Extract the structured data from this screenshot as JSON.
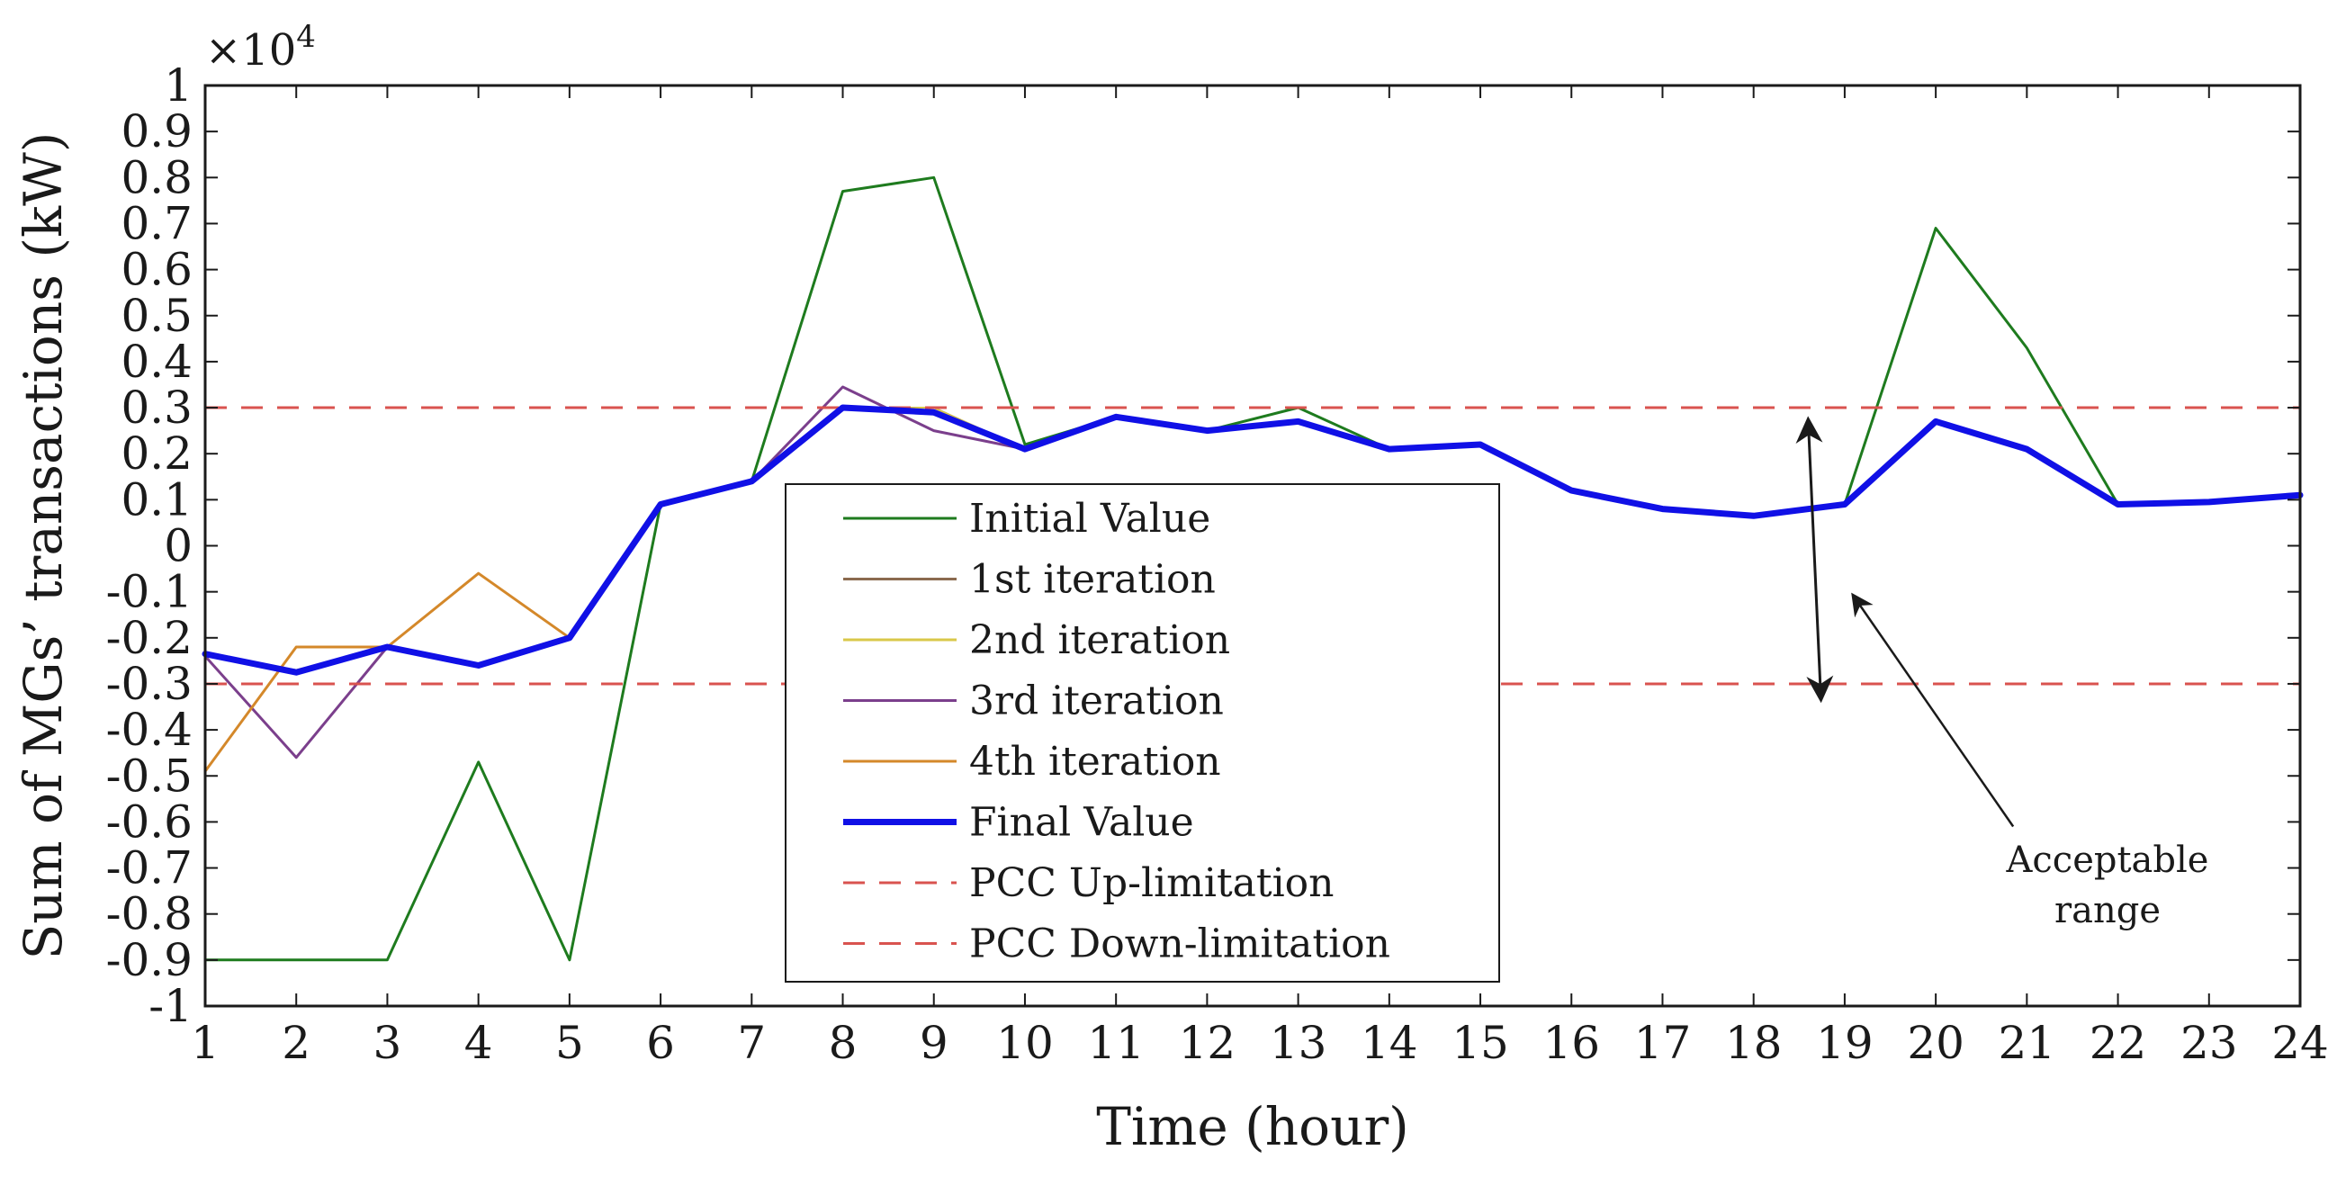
{
  "chart_data": {
    "type": "line",
    "title": "",
    "xlabel": "Time (hour)",
    "ylabel": "Sum of MGs’ transactions (kW)",
    "y_multiplier": "×10",
    "y_multiplier_exp": "4",
    "xlim": [
      1,
      24
    ],
    "ylim": [
      -1,
      1
    ],
    "x": [
      1,
      2,
      3,
      4,
      5,
      6,
      7,
      8,
      9,
      10,
      11,
      12,
      13,
      14,
      15,
      16,
      17,
      18,
      19,
      20,
      21,
      22,
      23,
      24
    ],
    "x_tick_labels": [
      "1",
      "2",
      "3",
      "4",
      "5",
      "6",
      "7",
      "8",
      "9",
      "10",
      "11",
      "12",
      "13",
      "14",
      "15",
      "16",
      "17",
      "18",
      "19",
      "20",
      "21",
      "22",
      "23",
      "24"
    ],
    "y_ticks": [
      1,
      0.9,
      0.8,
      0.7,
      0.6,
      0.5,
      0.4,
      0.3,
      0.2,
      0.1,
      0,
      -0.1,
      -0.2,
      -0.3,
      -0.4,
      -0.5,
      -0.6,
      -0.7,
      -0.8,
      -0.9,
      -1
    ],
    "y_tick_labels": [
      "1",
      "0.9",
      "0.8",
      "0.7",
      "0.6",
      "0.5",
      "0.4",
      "0.3",
      "0.2",
      "0.1",
      "0",
      "-0.1",
      "-0.2",
      "-0.3",
      "-0.4",
      "-0.5",
      "-0.6",
      "-0.7",
      "-0.8",
      "-0.9",
      "-1"
    ],
    "series": [
      {
        "name": "Initial Value",
        "color": "#1e7b1e",
        "width": 3,
        "dash": "none",
        "values": [
          -0.9,
          -0.9,
          -0.9,
          -0.47,
          -0.9,
          0.09,
          0.14,
          0.77,
          0.8,
          0.22,
          0.28,
          0.25,
          0.3,
          0.21,
          0.22,
          0.12,
          0.08,
          0.065,
          0.09,
          0.69,
          0.43,
          0.09,
          0.095,
          0.11
        ]
      },
      {
        "name": "1st iteration",
        "color": "#8b6a4f",
        "width": 2,
        "dash": "none",
        "values": [
          -0.24,
          -0.27,
          -0.22,
          -0.26,
          -0.2,
          0.09,
          0.14,
          0.3,
          0.3,
          0.21,
          0.28,
          0.25,
          0.27,
          0.21,
          0.22,
          0.12,
          0.08,
          0.065,
          0.09,
          0.27,
          0.21,
          0.09,
          0.095,
          0.11
        ]
      },
      {
        "name": "2nd iteration",
        "color": "#d9c84a",
        "width": 2,
        "dash": "none",
        "values": [
          -0.24,
          -0.27,
          -0.22,
          -0.26,
          -0.2,
          0.09,
          0.14,
          0.3,
          0.3,
          0.21,
          0.28,
          0.25,
          0.27,
          0.21,
          0.22,
          0.12,
          0.08,
          0.065,
          0.09,
          0.27,
          0.21,
          0.09,
          0.095,
          0.11
        ]
      },
      {
        "name": "3rd iteration",
        "color": "#7b3f8c",
        "width": 3,
        "dash": "none",
        "values": [
          -0.24,
          -0.46,
          -0.22,
          -0.26,
          -0.2,
          0.09,
          0.14,
          0.345,
          0.25,
          0.21,
          0.28,
          0.25,
          0.27,
          0.21,
          0.22,
          0.12,
          0.08,
          0.065,
          0.09,
          0.27,
          0.21,
          0.09,
          0.095,
          0.11
        ]
      },
      {
        "name": "4th iteration",
        "color": "#d4882a",
        "width": 3,
        "dash": "none",
        "values": [
          -0.49,
          -0.22,
          -0.22,
          -0.06,
          -0.2,
          0.09,
          0.14,
          0.3,
          0.29,
          0.21,
          0.28,
          0.25,
          0.27,
          0.21,
          0.22,
          0.12,
          0.08,
          0.065,
          0.09,
          0.27,
          0.21,
          0.09,
          0.095,
          0.11
        ]
      },
      {
        "name": "Final Value",
        "color": "#1010e6",
        "width": 7,
        "dash": "none",
        "values": [
          -0.235,
          -0.275,
          -0.22,
          -0.26,
          -0.2,
          0.09,
          0.14,
          0.3,
          0.29,
          0.21,
          0.28,
          0.25,
          0.27,
          0.21,
          0.22,
          0.12,
          0.08,
          0.065,
          0.09,
          0.27,
          0.21,
          0.09,
          0.095,
          0.11
        ]
      },
      {
        "name": "PCC Up-limitation",
        "color": "#d9534f",
        "width": 3,
        "dash": "dashed",
        "values": [
          0.3,
          0.3,
          0.3,
          0.3,
          0.3,
          0.3,
          0.3,
          0.3,
          0.3,
          0.3,
          0.3,
          0.3,
          0.3,
          0.3,
          0.3,
          0.3,
          0.3,
          0.3,
          0.3,
          0.3,
          0.3,
          0.3,
          0.3,
          0.3
        ]
      },
      {
        "name": "PCC Down-limitation",
        "color": "#d9534f",
        "width": 3,
        "dash": "dashed",
        "values": [
          -0.3,
          -0.3,
          -0.3,
          -0.3,
          -0.3,
          -0.3,
          -0.3,
          -0.3,
          -0.3,
          -0.3,
          -0.3,
          -0.3,
          -0.3,
          -0.3,
          -0.3,
          -0.3,
          -0.3,
          -0.3,
          -0.3,
          -0.3,
          -0.3,
          -0.3,
          -0.3,
          -0.3
        ]
      }
    ],
    "legend_position": "center",
    "annotation": {
      "line1": "Acceptable",
      "line2": "range",
      "double_arrow_x": 18.6,
      "double_arrow_y": [
        0.27,
        -0.33
      ],
      "pointer_from": [
        20.85,
        -0.61
      ],
      "pointer_to": [
        19.1,
        -0.11
      ]
    },
    "grid": false
  }
}
